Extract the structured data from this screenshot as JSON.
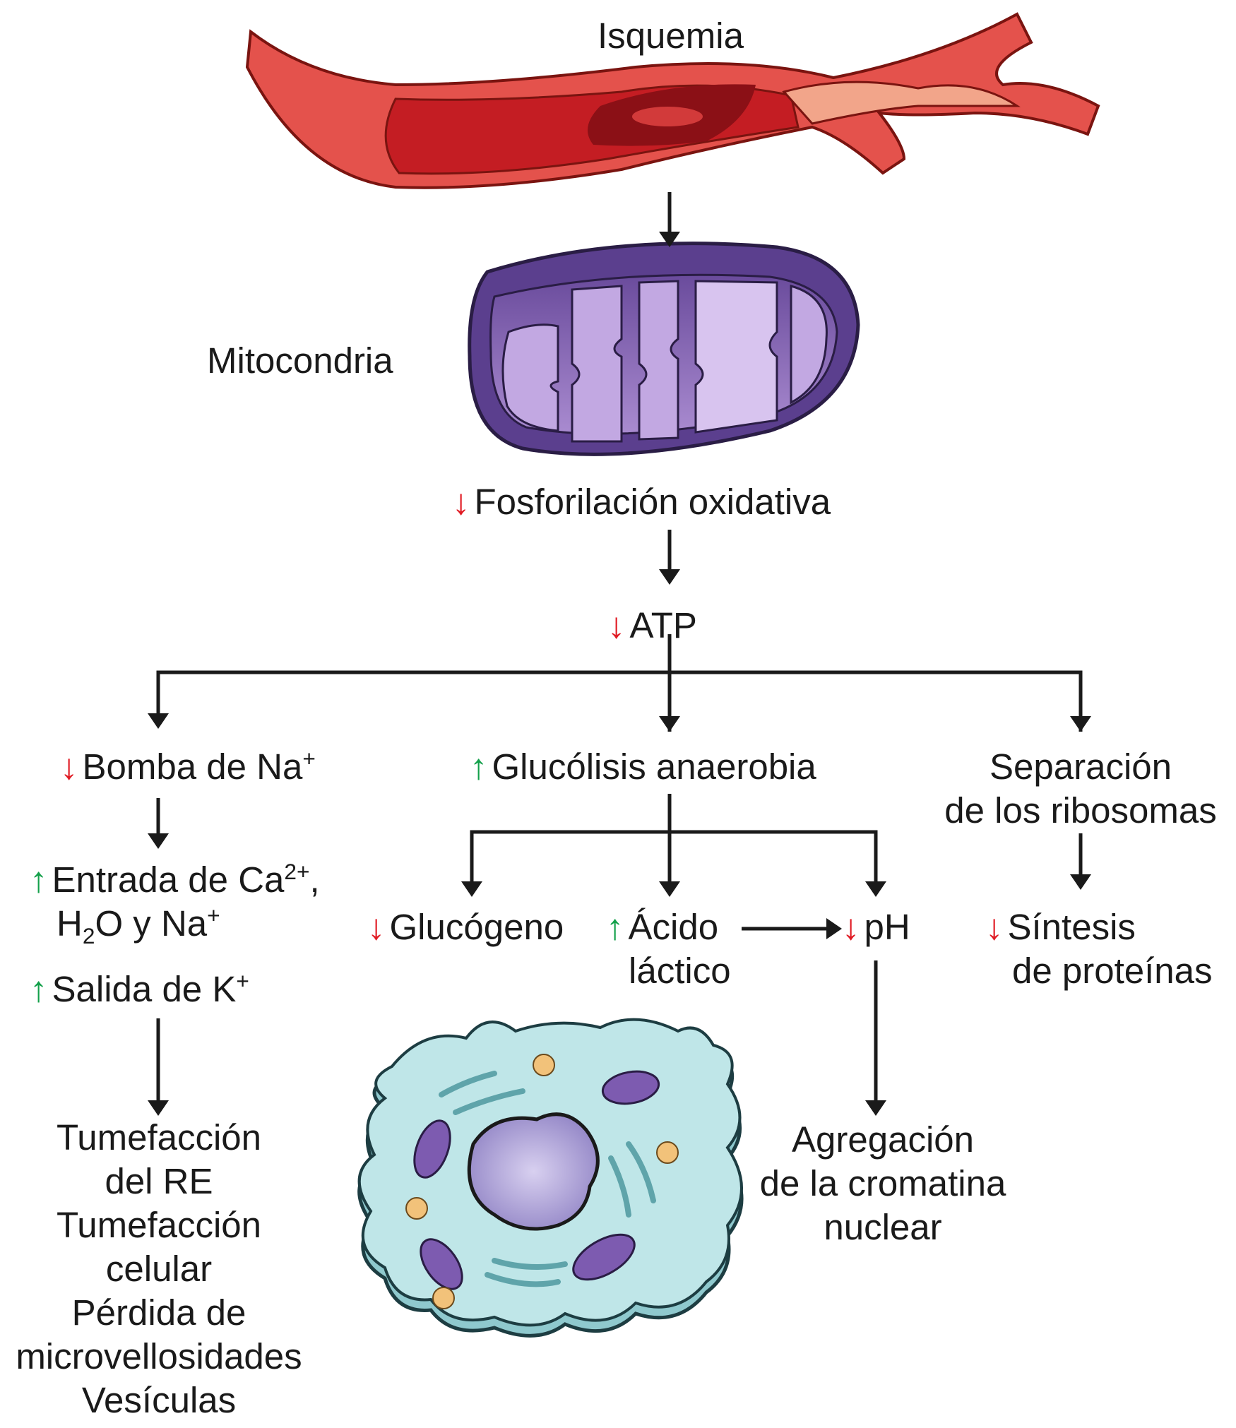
{
  "colors": {
    "decrease": "#e01b24",
    "increase": "#13a04a",
    "arrow": "#1a1a1a",
    "vessel": "#e03c38",
    "mitochondria": "#8a6ab8",
    "cell": "#b9e4e6"
  },
  "icons": {
    "decrease": "red-down-arrow-icon",
    "increase": "green-up-arrow-icon"
  },
  "labels": {
    "isquemia": "Isquemia",
    "mitocondria": "Mitocondria",
    "fosforilacion": "Fosforilación oxidativa",
    "atp": "ATP",
    "bomba": "Bomba de Na",
    "bomba_sup": "+",
    "glucolisis": "Glucólisis anaerobia",
    "separacion_1": "Separación",
    "separacion_2": "de los ribosomas",
    "entrada_1a": "Entrada de Ca",
    "entrada_1sup": "2+",
    "entrada_1b": ",",
    "entrada_2a": "H",
    "entrada_2sub": "2",
    "entrada_2b": "O y Na",
    "entrada_2sup": "+",
    "salida": "Salida de K",
    "salida_sup": "+",
    "glucogeno": "Glucógeno",
    "acido_1": "Ácido",
    "acido_2": "láctico",
    "ph": "pH",
    "sintesis_1": "Síntesis",
    "sintesis_2": "de proteínas",
    "outcomes": [
      "Tumefacción",
      "del RE",
      "Tumefacción",
      "celular",
      "Pérdida de",
      "microvellosidades",
      "Vesículas"
    ],
    "agregacion": [
      "Agregación",
      "de la cromatina",
      "nuclear"
    ]
  }
}
